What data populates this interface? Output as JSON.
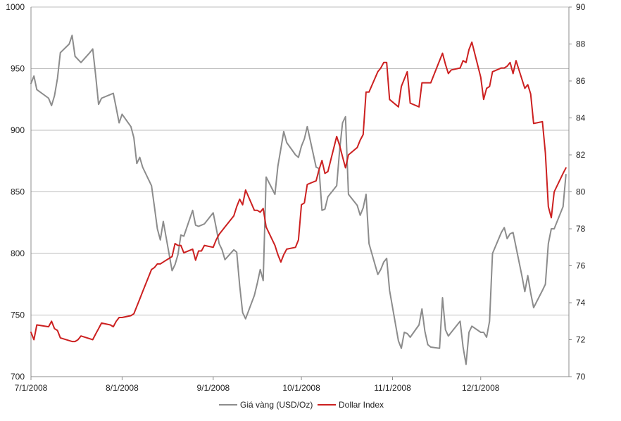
{
  "chart_data": {
    "type": "line",
    "title": "",
    "xlabel": "",
    "ylabel": "",
    "x_ticks": [
      "7/1/2008",
      "8/1/2008",
      "9/1/2008",
      "10/1/2008",
      "11/1/2008",
      "12/1/2008"
    ],
    "x_range": [
      "2008-07-01",
      "2008-12-31"
    ],
    "y_left": {
      "range": [
        700,
        1000
      ],
      "ticks": [
        "700",
        "750",
        "800",
        "850",
        "900",
        "950",
        "1000"
      ]
    },
    "y_right": {
      "range": [
        70,
        90
      ],
      "ticks": [
        "70",
        "72",
        "74",
        "76",
        "78",
        "80",
        "82",
        "84",
        "86",
        "88",
        "90"
      ]
    },
    "grid": "horizontal",
    "legend_position": "bottom",
    "series": [
      {
        "name": "Giá vàng (USD/Oz)",
        "axis": "left",
        "color": "#8c8c8c",
        "points": [
          [
            "2008-07-01",
            938
          ],
          [
            "2008-07-02",
            944
          ],
          [
            "2008-07-03",
            933
          ],
          [
            "2008-07-07",
            926
          ],
          [
            "2008-07-08",
            920
          ],
          [
            "2008-07-09",
            928
          ],
          [
            "2008-07-10",
            942
          ],
          [
            "2008-07-11",
            963
          ],
          [
            "2008-07-14",
            970
          ],
          [
            "2008-07-15",
            977
          ],
          [
            "2008-07-16",
            960
          ],
          [
            "2008-07-18",
            955
          ],
          [
            "2008-07-21",
            963
          ],
          [
            "2008-07-22",
            966
          ],
          [
            "2008-07-23",
            945
          ],
          [
            "2008-07-24",
            921
          ],
          [
            "2008-07-25",
            926
          ],
          [
            "2008-07-28",
            929
          ],
          [
            "2008-07-29",
            930
          ],
          [
            "2008-07-30",
            918
          ],
          [
            "2008-07-31",
            906
          ],
          [
            "2008-08-01",
            913
          ],
          [
            "2008-08-04",
            903
          ],
          [
            "2008-08-05",
            894
          ],
          [
            "2008-08-06",
            873
          ],
          [
            "2008-08-07",
            878
          ],
          [
            "2008-08-08",
            870
          ],
          [
            "2008-08-11",
            855
          ],
          [
            "2008-08-12",
            838
          ],
          [
            "2008-08-13",
            820
          ],
          [
            "2008-08-14",
            811
          ],
          [
            "2008-08-15",
            826
          ],
          [
            "2008-08-18",
            786
          ],
          [
            "2008-08-19",
            791
          ],
          [
            "2008-08-20",
            799
          ],
          [
            "2008-08-21",
            815
          ],
          [
            "2008-08-22",
            814
          ],
          [
            "2008-08-25",
            835
          ],
          [
            "2008-08-26",
            823
          ],
          [
            "2008-08-27",
            822
          ],
          [
            "2008-08-28",
            823
          ],
          [
            "2008-08-29",
            824
          ],
          [
            "2008-09-01",
            833
          ],
          [
            "2008-09-02",
            821
          ],
          [
            "2008-09-03",
            808
          ],
          [
            "2008-09-04",
            803
          ],
          [
            "2008-09-05",
            795
          ],
          [
            "2008-09-08",
            803
          ],
          [
            "2008-09-09",
            801
          ],
          [
            "2008-09-10",
            774
          ],
          [
            "2008-09-11",
            752
          ],
          [
            "2008-09-12",
            747
          ],
          [
            "2008-09-15",
            766
          ],
          [
            "2008-09-16",
            776
          ],
          [
            "2008-09-17",
            787
          ],
          [
            "2008-09-18",
            778
          ],
          [
            "2008-09-19",
            862
          ],
          [
            "2008-09-22",
            848
          ],
          [
            "2008-09-23",
            871
          ],
          [
            "2008-09-24",
            885
          ],
          [
            "2008-09-25",
            899
          ],
          [
            "2008-09-26",
            890
          ],
          [
            "2008-09-29",
            880
          ],
          [
            "2008-09-30",
            878
          ],
          [
            "2008-10-01",
            887
          ],
          [
            "2008-10-02",
            893
          ],
          [
            "2008-10-03",
            903
          ],
          [
            "2008-10-06",
            870
          ],
          [
            "2008-10-07",
            869
          ],
          [
            "2008-10-08",
            835
          ],
          [
            "2008-10-09",
            836
          ],
          [
            "2008-10-10",
            846
          ],
          [
            "2008-10-13",
            855
          ],
          [
            "2008-10-14",
            884
          ],
          [
            "2008-10-15",
            906
          ],
          [
            "2008-10-16",
            911
          ],
          [
            "2008-10-17",
            848
          ],
          [
            "2008-10-20",
            839
          ],
          [
            "2008-10-21",
            831
          ],
          [
            "2008-10-22",
            837
          ],
          [
            "2008-10-23",
            848
          ],
          [
            "2008-10-24",
            808
          ],
          [
            "2008-10-27",
            783
          ],
          [
            "2008-10-28",
            787
          ],
          [
            "2008-10-29",
            793
          ],
          [
            "2008-10-30",
            796
          ],
          [
            "2008-10-31",
            770
          ],
          [
            "2008-11-03",
            729
          ],
          [
            "2008-11-04",
            723
          ],
          [
            "2008-11-05",
            736
          ],
          [
            "2008-11-06",
            735
          ],
          [
            "2008-11-07",
            732
          ],
          [
            "2008-11-10",
            742
          ],
          [
            "2008-11-11",
            755
          ],
          [
            "2008-11-12",
            737
          ],
          [
            "2008-11-13",
            726
          ],
          [
            "2008-11-14",
            724
          ],
          [
            "2008-11-17",
            723
          ],
          [
            "2008-11-18",
            764
          ],
          [
            "2008-11-19",
            738
          ],
          [
            "2008-11-20",
            733
          ],
          [
            "2008-11-24",
            745
          ],
          [
            "2008-11-25",
            724
          ],
          [
            "2008-11-26",
            710
          ],
          [
            "2008-11-27",
            736
          ],
          [
            "2008-11-28",
            741
          ],
          [
            "2008-12-01",
            736
          ],
          [
            "2008-12-02",
            736
          ],
          [
            "2008-12-03",
            732
          ],
          [
            "2008-12-04",
            745
          ],
          [
            "2008-12-05",
            800
          ],
          [
            "2008-12-08",
            817
          ],
          [
            "2008-12-09",
            821
          ],
          [
            "2008-12-10",
            812
          ],
          [
            "2008-12-11",
            816
          ],
          [
            "2008-12-12",
            817
          ],
          [
            "2008-12-15",
            782
          ],
          [
            "2008-12-16",
            769
          ],
          [
            "2008-12-17",
            782
          ],
          [
            "2008-12-18",
            768
          ],
          [
            "2008-12-19",
            756
          ],
          [
            "2008-12-22",
            770
          ],
          [
            "2008-12-23",
            775
          ],
          [
            "2008-12-24",
            808
          ],
          [
            "2008-12-25",
            820
          ],
          [
            "2008-12-26",
            820
          ],
          [
            "2008-12-29",
            838
          ],
          [
            "2008-12-30",
            864
          ]
        ]
      },
      {
        "name": "Dollar Index",
        "axis": "right",
        "color": "#cc2020",
        "points": [
          [
            "2008-07-01",
            72.4
          ],
          [
            "2008-07-02",
            72.0
          ],
          [
            "2008-07-03",
            72.8
          ],
          [
            "2008-07-07",
            72.7
          ],
          [
            "2008-07-08",
            73.0
          ],
          [
            "2008-07-09",
            72.6
          ],
          [
            "2008-07-10",
            72.5
          ],
          [
            "2008-07-11",
            72.1
          ],
          [
            "2008-07-15",
            71.9
          ],
          [
            "2008-07-16",
            71.9
          ],
          [
            "2008-07-17",
            72.0
          ],
          [
            "2008-07-18",
            72.2
          ],
          [
            "2008-07-22",
            72.0
          ],
          [
            "2008-07-23",
            72.3
          ],
          [
            "2008-07-24",
            72.6
          ],
          [
            "2008-07-25",
            72.9
          ],
          [
            "2008-07-28",
            72.8
          ],
          [
            "2008-07-29",
            72.7
          ],
          [
            "2008-07-30",
            73.0
          ],
          [
            "2008-07-31",
            73.2
          ],
          [
            "2008-08-01",
            73.2
          ],
          [
            "2008-08-04",
            73.3
          ],
          [
            "2008-08-05",
            73.4
          ],
          [
            "2008-08-06",
            73.8
          ],
          [
            "2008-08-07",
            74.2
          ],
          [
            "2008-08-08",
            74.6
          ],
          [
            "2008-08-11",
            75.8
          ],
          [
            "2008-08-12",
            75.9
          ],
          [
            "2008-08-13",
            76.1
          ],
          [
            "2008-08-14",
            76.1
          ],
          [
            "2008-08-15",
            76.2
          ],
          [
            "2008-08-18",
            76.5
          ],
          [
            "2008-08-19",
            77.2
          ],
          [
            "2008-08-20",
            77.1
          ],
          [
            "2008-08-21",
            77.1
          ],
          [
            "2008-08-22",
            76.7
          ],
          [
            "2008-08-25",
            76.9
          ],
          [
            "2008-08-26",
            76.3
          ],
          [
            "2008-08-27",
            76.8
          ],
          [
            "2008-08-28",
            76.8
          ],
          [
            "2008-08-29",
            77.1
          ],
          [
            "2008-09-01",
            77.0
          ],
          [
            "2008-09-02",
            77.4
          ],
          [
            "2008-09-03",
            77.7
          ],
          [
            "2008-09-04",
            77.9
          ],
          [
            "2008-09-05",
            78.1
          ],
          [
            "2008-09-08",
            78.7
          ],
          [
            "2008-09-09",
            79.2
          ],
          [
            "2008-09-10",
            79.6
          ],
          [
            "2008-09-11",
            79.3
          ],
          [
            "2008-09-12",
            80.1
          ],
          [
            "2008-09-15",
            79.0
          ],
          [
            "2008-09-16",
            79.0
          ],
          [
            "2008-09-17",
            78.9
          ],
          [
            "2008-09-18",
            79.1
          ],
          [
            "2008-09-19",
            78.1
          ],
          [
            "2008-09-22",
            77.1
          ],
          [
            "2008-09-23",
            76.6
          ],
          [
            "2008-09-24",
            76.2
          ],
          [
            "2008-09-25",
            76.6
          ],
          [
            "2008-09-26",
            76.9
          ],
          [
            "2008-09-29",
            77.0
          ],
          [
            "2008-09-30",
            77.4
          ],
          [
            "2008-10-01",
            79.3
          ],
          [
            "2008-10-02",
            79.4
          ],
          [
            "2008-10-03",
            80.4
          ],
          [
            "2008-10-06",
            80.6
          ],
          [
            "2008-10-07",
            81.2
          ],
          [
            "2008-10-08",
            81.7
          ],
          [
            "2008-10-09",
            81.0
          ],
          [
            "2008-10-10",
            81.1
          ],
          [
            "2008-10-13",
            83.0
          ],
          [
            "2008-10-14",
            82.5
          ],
          [
            "2008-10-15",
            81.9
          ],
          [
            "2008-10-16",
            81.3
          ],
          [
            "2008-10-17",
            82.0
          ],
          [
            "2008-10-20",
            82.4
          ],
          [
            "2008-10-21",
            82.8
          ],
          [
            "2008-10-22",
            83.1
          ],
          [
            "2008-10-23",
            85.4
          ],
          [
            "2008-10-24",
            85.4
          ],
          [
            "2008-10-27",
            86.5
          ],
          [
            "2008-10-28",
            86.7
          ],
          [
            "2008-10-29",
            87.0
          ],
          [
            "2008-10-30",
            87.0
          ],
          [
            "2008-10-31",
            85.0
          ],
          [
            "2008-11-03",
            84.6
          ],
          [
            "2008-11-04",
            85.7
          ],
          [
            "2008-11-05",
            86.1
          ],
          [
            "2008-11-06",
            86.5
          ],
          [
            "2008-11-07",
            84.8
          ],
          [
            "2008-11-10",
            84.6
          ],
          [
            "2008-11-11",
            85.9
          ],
          [
            "2008-11-12",
            85.9
          ],
          [
            "2008-11-13",
            85.9
          ],
          [
            "2008-11-14",
            85.9
          ],
          [
            "2008-11-17",
            87.1
          ],
          [
            "2008-11-18",
            87.5
          ],
          [
            "2008-11-19",
            86.9
          ],
          [
            "2008-11-20",
            86.4
          ],
          [
            "2008-11-21",
            86.6
          ],
          [
            "2008-11-24",
            86.7
          ],
          [
            "2008-11-25",
            87.1
          ],
          [
            "2008-11-26",
            87.0
          ],
          [
            "2008-11-27",
            87.7
          ],
          [
            "2008-11-28",
            88.1
          ],
          [
            "2008-12-01",
            86.2
          ],
          [
            "2008-12-02",
            85.0
          ],
          [
            "2008-12-03",
            85.6
          ],
          [
            "2008-12-04",
            85.7
          ],
          [
            "2008-12-05",
            86.5
          ],
          [
            "2008-12-08",
            86.7
          ],
          [
            "2008-12-09",
            86.7
          ],
          [
            "2008-12-10",
            86.8
          ],
          [
            "2008-12-11",
            87.0
          ],
          [
            "2008-12-12",
            86.4
          ],
          [
            "2008-12-13",
            87.1
          ],
          [
            "2008-12-16",
            85.6
          ],
          [
            "2008-12-17",
            85.8
          ],
          [
            "2008-12-18",
            85.3
          ],
          [
            "2008-12-19",
            83.7
          ],
          [
            "2008-12-22",
            83.8
          ],
          [
            "2008-12-23",
            82.1
          ],
          [
            "2008-12-24",
            79.2
          ],
          [
            "2008-12-25",
            78.6
          ],
          [
            "2008-12-26",
            80.0
          ],
          [
            "2008-12-29",
            81.0
          ],
          [
            "2008-12-30",
            81.3
          ]
        ]
      }
    ]
  }
}
